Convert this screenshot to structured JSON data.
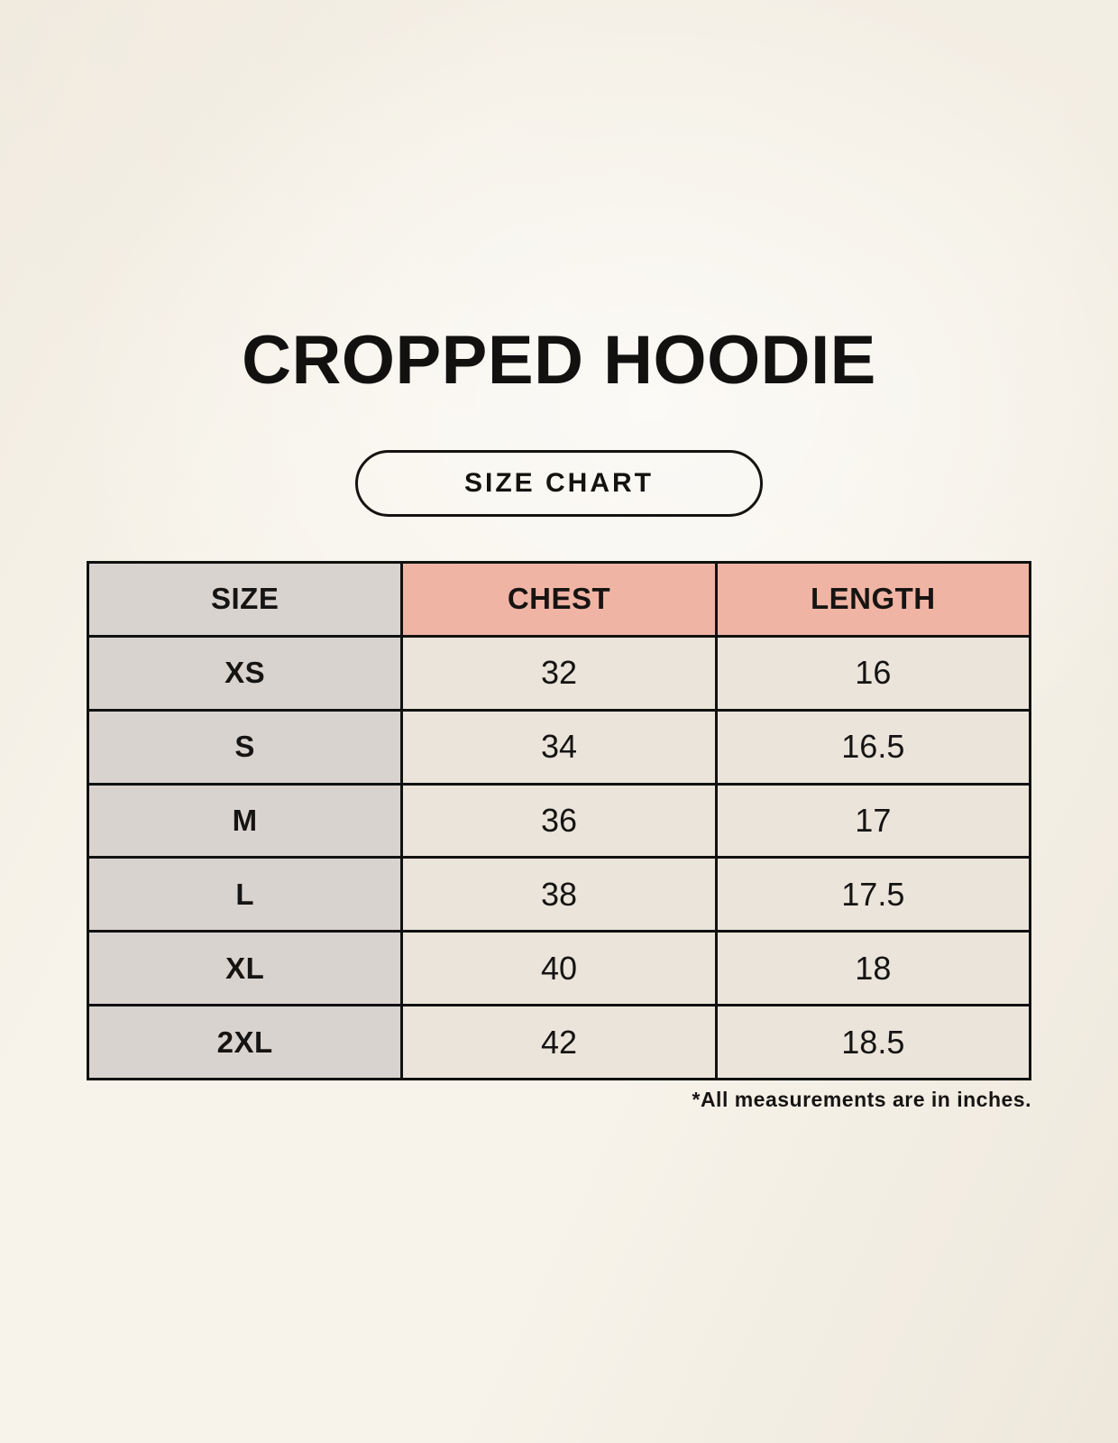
{
  "header": {
    "title": "CROPPED HOODIE",
    "badge_label": "SIZE CHART"
  },
  "chart_data": {
    "type": "table",
    "title": "CROPPED HOODIE size chart",
    "columns": [
      "SIZE",
      "CHEST",
      "LENGTH"
    ],
    "units": "inches",
    "rows": [
      {
        "size": "XS",
        "chest": "32",
        "length": "16"
      },
      {
        "size": "S",
        "chest": "34",
        "length": "16.5"
      },
      {
        "size": "M",
        "chest": "36",
        "length": "17"
      },
      {
        "size": "L",
        "chest": "38",
        "length": "17.5"
      },
      {
        "size": "XL",
        "chest": "40",
        "length": "18"
      },
      {
        "size": "2XL",
        "chest": "42",
        "length": "18.5"
      }
    ]
  },
  "footnote": "*All measurements are in inches.",
  "colors": {
    "background": "#f7f3ea",
    "size_column": "#d9d3d0",
    "header_accent": "#f0b4a4",
    "data_cell": "#eae4da",
    "border": "#111111",
    "text": "#161412"
  }
}
